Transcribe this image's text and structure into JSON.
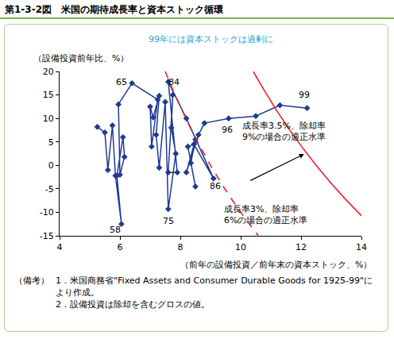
{
  "chart_data": {
    "type": "line",
    "title": "第1-3-2図　米国の期待成長率と資本ストック循環",
    "subtitle": "99年には資本ストックは過剰に",
    "x_label": "（前年の設備投資／前年末の資本ストック、%）",
    "y_label": "（設備投資前年比、%）",
    "xlim": [
      4,
      14
    ],
    "ylim": [
      -15,
      20
    ],
    "xticks": [
      4,
      6,
      8,
      10,
      12,
      14
    ],
    "yticks": [
      -15,
      -10,
      -5,
      0,
      5,
      10,
      15,
      20
    ],
    "grid": false,
    "series": [
      {
        "color": "#1f3a93",
        "marker": "diamond",
        "line_style": "solid",
        "x": [
          5.25,
          5.5,
          5.6,
          5.75,
          5.85,
          6.05,
          5.9,
          6.1,
          6.15,
          6.0,
          5.95,
          6.4,
          7.25,
          7.05,
          7.0,
          7.1,
          7.3,
          7.2,
          7.3,
          7.5,
          7.6,
          7.85,
          7.7,
          7.75,
          7.6,
          7.9,
          7.6,
          8.2,
          9.1,
          8.45,
          8.25,
          8.5,
          8.35,
          8.5,
          8.2,
          8.6,
          8.8,
          9.6,
          10.5,
          11.3,
          12.2
        ],
        "values": [
          8.2,
          7.0,
          -1.0,
          8.5,
          -2.2,
          -12.5,
          -2.2,
          6.0,
          1.8,
          -2.0,
          13.0,
          17.5,
          14.0,
          4.0,
          12.5,
          10.2,
          14.8,
          6.5,
          -0.5,
          13.5,
          -9.3,
          2.5,
          8.0,
          15.0,
          -1.5,
          -1.5,
          17.8,
          10.0,
          -2.8,
          4.5,
          4.0,
          -4.5,
          0.5,
          5.5,
          -1.5,
          6.5,
          9.0,
          10.0,
          10.5,
          12.8,
          12.2
        ]
      },
      {
        "color": "#e8202a",
        "line_style": "solid",
        "x": [
          10.42,
          10.8,
          11.2,
          11.6,
          12.0,
          12.5,
          13.0,
          13.5,
          14.0
        ],
        "values": [
          19.96,
          15.74,
          11.61,
          7.76,
          4.17,
          0,
          -3.85,
          -7.41,
          -10.71
        ]
      },
      {
        "color": "#e8202a",
        "line_style": "dashed",
        "x": [
          7.5,
          7.8,
          8.2,
          8.6,
          9.0,
          9.4,
          9.8,
          10.2,
          10.58
        ],
        "values": [
          20,
          15.38,
          9.76,
          4.65,
          0,
          -4.26,
          -8.16,
          -11.76,
          -14.93
        ]
      }
    ],
    "annotations": [
      {
        "text": "58",
        "x": 5.84,
        "y": -13.7
      },
      {
        "text": "65",
        "x": 6.05,
        "y": 17.8
      },
      {
        "text": "75",
        "x": 7.6,
        "y": -11.8
      },
      {
        "text": "84",
        "x": 7.78,
        "y": 17.8
      },
      {
        "text": "86",
        "x": 9.15,
        "y": -4.5
      },
      {
        "text": "96",
        "x": 9.55,
        "y": 7.5
      },
      {
        "text": "99",
        "x": 12.1,
        "y": 15
      },
      {
        "text": "成長率3.5%、除却率\n9%の場合の適正水準",
        "x": 10.0,
        "y": 7.3,
        "anchor": "left"
      },
      {
        "text": "成長率3%、除却率\n6%の場合の適正水準",
        "x": 9.4,
        "y": -10.6,
        "anchor": "left"
      }
    ],
    "notes": {
      "label": "（備考）",
      "items": [
        "1．米国商務省\"Fixed Assets and Consumer Durable Goods for 1925-99\"により作成。",
        "2．設備投資は除却を含むグロスの値。"
      ]
    }
  }
}
